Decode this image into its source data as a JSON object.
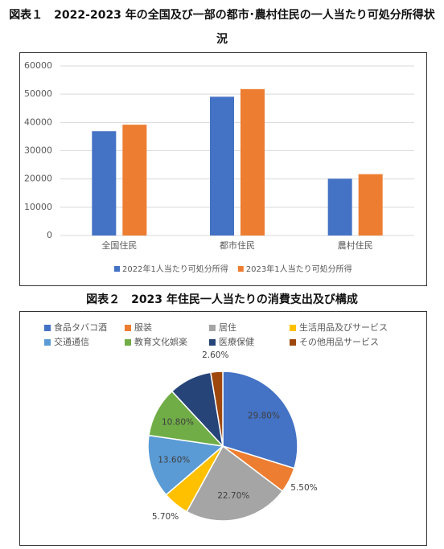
{
  "chart_data": [
    {
      "type": "bar",
      "title": "図表１　2022-2023 年の全国及び一部の都市･農村住民の一人当たり可処分所得状況",
      "categories": [
        "全国住民",
        "都市住民",
        "農村住民"
      ],
      "series": [
        {
          "name": "2022年1人当たり可処分所得",
          "color": "#4472c4",
          "values": [
            36900,
            49100,
            20100
          ]
        },
        {
          "name": "2023年1人当たり可処分所得",
          "color": "#ed7d31",
          "values": [
            39200,
            51800,
            21700
          ]
        }
      ],
      "ylim": [
        0,
        60000
      ],
      "yticks": [
        0,
        10000,
        20000,
        30000,
        40000,
        50000,
        60000
      ],
      "grid": true,
      "legend": "bottom"
    },
    {
      "type": "pie",
      "title": "図表２　2023 年住民一人当たりの消費支出及び構成",
      "categories": [
        "食品タバコ酒",
        "服装",
        "居住",
        "生活用品及びサービス",
        "交通通信",
        "教育文化娯楽",
        "医療保健",
        "その他用品サービス"
      ],
      "colors": [
        "#4472c4",
        "#ed7d31",
        "#a5a5a5",
        "#ffc000",
        "#5b9bd5",
        "#70ad47",
        "#264478",
        "#9e480e"
      ],
      "values": [
        29.8,
        5.5,
        22.7,
        5.7,
        13.6,
        10.8,
        9.3,
        2.6
      ],
      "value_labels": [
        "29.80%",
        "5.50%",
        "22.70%",
        "5.70%",
        "13.60%",
        "10.80%",
        null,
        "2.60%"
      ],
      "legend": "top"
    }
  ]
}
